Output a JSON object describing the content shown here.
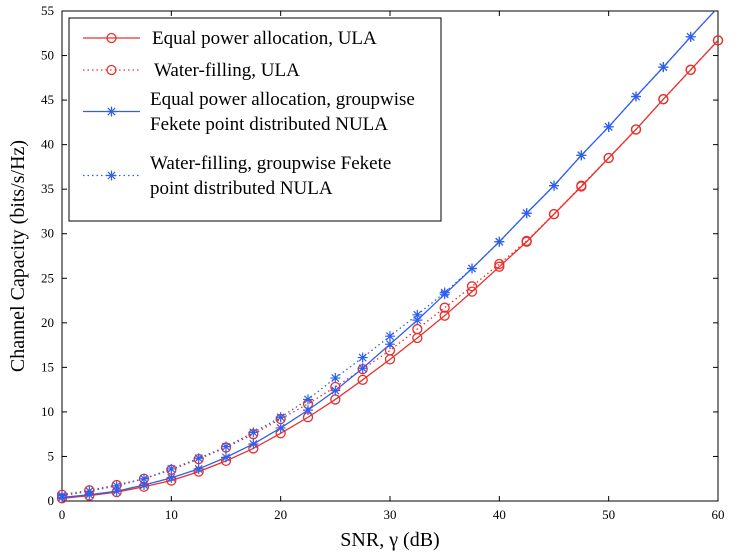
{
  "chart_data": {
    "type": "line",
    "title": "",
    "xlabel": "SNR,  γ (dB)",
    "ylabel": "Channel Capacity (bits/s/Hz)",
    "xlim": [
      0,
      60
    ],
    "ylim": [
      0,
      55
    ],
    "x_ticks": [
      0,
      10,
      20,
      30,
      40,
      50,
      60
    ],
    "y_ticks": [
      0,
      5,
      10,
      15,
      20,
      25,
      30,
      35,
      40,
      45,
      50,
      55
    ],
    "grid": false,
    "legend_position": "top-left",
    "x": [
      0,
      2.5,
      5,
      7.5,
      10,
      12.5,
      15,
      17.5,
      20,
      22.5,
      25,
      27.5,
      30,
      32.5,
      35,
      37.5,
      40,
      42.5,
      45,
      47.5,
      50,
      52.5,
      55,
      57.5,
      60
    ],
    "series": [
      {
        "name": "Equal power allocation, ULA",
        "legend_lines": [
          "Equal power allocation, ULA"
        ],
        "color": "#e8302a",
        "line_style": "solid",
        "marker": "circle",
        "values": [
          0.3,
          0.6,
          1.0,
          1.6,
          2.3,
          3.3,
          4.5,
          5.9,
          7.6,
          9.4,
          11.4,
          13.6,
          15.9,
          18.3,
          20.8,
          23.5,
          26.3,
          29.1,
          32.2,
          35.3,
          38.5,
          41.7,
          45.1,
          48.4,
          51.7
        ]
      },
      {
        "name": "Water-filling, ULA",
        "legend_lines": [
          "Water-filling, ULA"
        ],
        "color": "#e8302a",
        "line_style": "dotted",
        "marker": "circle",
        "values": [
          0.7,
          1.2,
          1.8,
          2.5,
          3.5,
          4.7,
          6.0,
          7.5,
          9.2,
          10.9,
          12.8,
          14.8,
          16.9,
          19.3,
          21.7,
          24.1,
          26.6,
          29.2,
          32.2,
          35.4,
          38.5,
          41.7,
          45.1,
          48.4,
          51.7
        ]
      },
      {
        "name": "Equal power allocation, groupwise Fekete point distributed NULA",
        "legend_lines": [
          "Equal power allocation, groupwise",
          "Fekete point distributed NULA"
        ],
        "color": "#2f5ff0",
        "line_style": "solid",
        "marker": "asterisk",
        "values": [
          0.4,
          0.7,
          1.1,
          1.8,
          2.6,
          3.6,
          4.9,
          6.4,
          8.2,
          10.2,
          12.4,
          14.9,
          17.6,
          20.3,
          23.2,
          26.1,
          29.1,
          32.3,
          35.4,
          38.8,
          42.0,
          45.4,
          48.7,
          52.1,
          55.4
        ]
      },
      {
        "name": "Water-filling, groupwise Fekete point distributed NULA",
        "legend_lines": [
          "Water-filling, groupwise Fekete",
          "point distributed NULA"
        ],
        "color": "#2f5ff0",
        "line_style": "dotted",
        "marker": "asterisk",
        "values": [
          0.6,
          1.1,
          1.7,
          2.5,
          3.6,
          4.8,
          6.1,
          7.7,
          9.4,
          11.4,
          13.8,
          16.1,
          18.5,
          20.9,
          23.4,
          26.1,
          29.1,
          32.3,
          35.4,
          38.8,
          42.0,
          45.4,
          48.7,
          52.1,
          55.4
        ]
      }
    ]
  }
}
